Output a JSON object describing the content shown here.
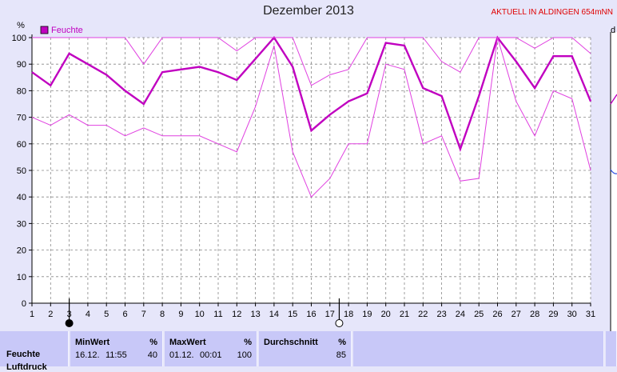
{
  "title": "Dezember 2013",
  "station": "AKTUELL IN ALDINGEN 654mNN",
  "right_partial": "d",
  "chart_data": {
    "type": "line",
    "title": "Dezember 2013",
    "ylabel": "%",
    "ylim": [
      0,
      100
    ],
    "yticks": [
      0,
      10,
      20,
      30,
      40,
      50,
      60,
      70,
      80,
      90,
      100
    ],
    "x": [
      1,
      2,
      3,
      4,
      5,
      6,
      7,
      8,
      9,
      10,
      11,
      12,
      13,
      14,
      15,
      16,
      17,
      18,
      19,
      20,
      21,
      22,
      23,
      24,
      25,
      26,
      27,
      28,
      29,
      30,
      31
    ],
    "legend": "Feuchte",
    "series": [
      {
        "name": "Feuchte",
        "role": "mean",
        "color": "#c000c0",
        "values": [
          87,
          82,
          94,
          90,
          86,
          80,
          75,
          87,
          88,
          89,
          87,
          84,
          92,
          100,
          89,
          65,
          71,
          76,
          79,
          98,
          97,
          81,
          78,
          58,
          78,
          100,
          91,
          81,
          93,
          93,
          76
        ]
      },
      {
        "role": "max",
        "color": "#e040e0",
        "values": [
          100,
          100,
          100,
          100,
          100,
          100,
          90,
          100,
          100,
          100,
          100,
          95,
          100,
          100,
          100,
          82,
          86,
          88,
          100,
          100,
          100,
          100,
          91,
          87,
          100,
          100,
          100,
          96,
          100,
          100,
          94
        ]
      },
      {
        "role": "min",
        "color": "#e040e0",
        "values": [
          70,
          67,
          71,
          67,
          67,
          63,
          66,
          63,
          63,
          63,
          60,
          57,
          74,
          97,
          57,
          40,
          47,
          60,
          60,
          90,
          88,
          60,
          63,
          46,
          47,
          100,
          76,
          63,
          80,
          77,
          50
        ]
      }
    ],
    "moon_markers": [
      {
        "day": 3,
        "phase": "new"
      },
      {
        "day": 17.5,
        "phase": "full"
      }
    ],
    "grid": true
  },
  "table": {
    "row_label": "Feuchte",
    "row_label_next": "Luftdruck",
    "min_header": "MinWert",
    "min_unit": "%",
    "min_date": "16.12.",
    "min_time": "11:55",
    "min_value": "40",
    "max_header": "MaxWert",
    "max_unit": "%",
    "max_date": "01.12.",
    "max_time": "00:01",
    "max_value": "100",
    "avg_header": "Durchschnitt",
    "avg_unit": "%",
    "avg_value": "85"
  }
}
